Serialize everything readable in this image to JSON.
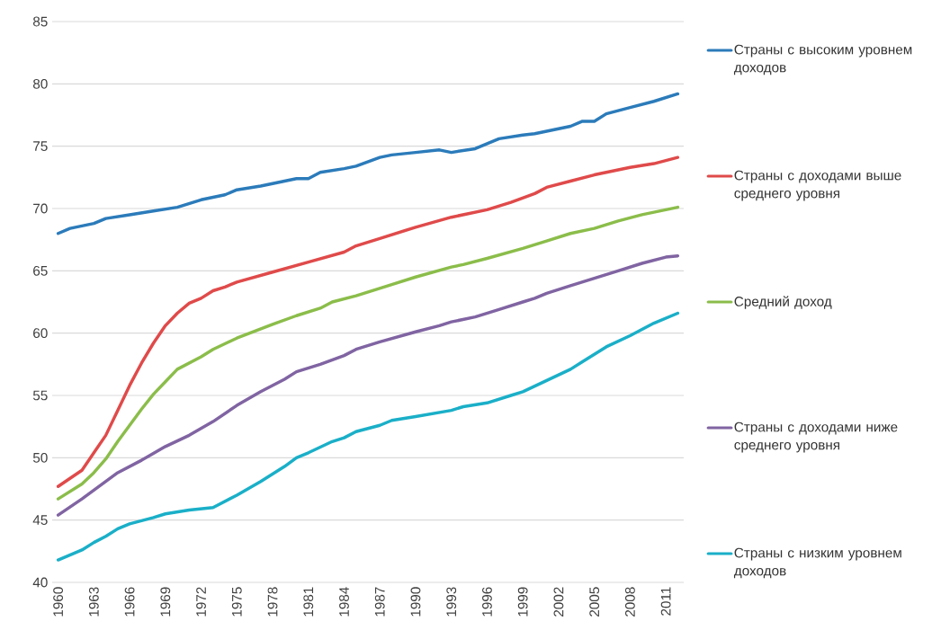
{
  "chart_data": {
    "type": "line",
    "ylim": [
      40,
      85
    ],
    "yticks": [
      40,
      45,
      50,
      55,
      60,
      65,
      70,
      75,
      80,
      85
    ],
    "xlim": [
      1959.5,
      2012.5
    ],
    "xticks": [
      1960,
      1963,
      1966,
      1969,
      1972,
      1975,
      1978,
      1981,
      1984,
      1987,
      1990,
      1993,
      1996,
      1999,
      2002,
      2005,
      2008,
      2011
    ],
    "grid": "y",
    "legend": "right",
    "marker": "none",
    "line_style": "solid",
    "series": [
      {
        "name": "Страны с высоким уровнем доходов",
        "color": "#2b7bba",
        "x": [
          1960,
          1961,
          1963,
          1964,
          1966,
          1968,
          1970,
          1972,
          1974,
          1975,
          1977,
          1979,
          1980,
          1981,
          1982,
          1984,
          1985,
          1987,
          1988,
          1990,
          1992,
          1993,
          1995,
          1997,
          1999,
          2000,
          2002,
          2003,
          2004,
          2005,
          2006,
          2008,
          2010,
          2012
        ],
        "values": [
          68.0,
          68.4,
          68.8,
          69.2,
          69.5,
          69.8,
          70.1,
          70.7,
          71.1,
          71.5,
          71.8,
          72.2,
          72.4,
          72.4,
          72.9,
          73.2,
          73.4,
          74.1,
          74.3,
          74.5,
          74.7,
          74.5,
          74.8,
          75.6,
          75.9,
          76.0,
          76.4,
          76.6,
          77.0,
          77.0,
          77.6,
          78.1,
          78.6,
          79.2
        ]
      },
      {
        "name": "Страны с доходами выше среднего уровня",
        "color": "#e04a4a",
        "x": [
          1960,
          1962,
          1963,
          1964,
          1965,
          1966,
          1967,
          1968,
          1969,
          1970,
          1971,
          1972,
          1973,
          1974,
          1975,
          1978,
          1981,
          1984,
          1985,
          1987,
          1990,
          1993,
          1996,
          1998,
          2000,
          2001,
          2003,
          2005,
          2006,
          2008,
          2010,
          2012
        ],
        "values": [
          47.7,
          49.0,
          50.4,
          51.8,
          53.8,
          55.8,
          57.6,
          59.2,
          60.6,
          61.6,
          62.4,
          62.8,
          63.4,
          63.7,
          64.1,
          64.9,
          65.7,
          66.5,
          67.0,
          67.6,
          68.5,
          69.3,
          69.9,
          70.5,
          71.2,
          71.7,
          72.2,
          72.7,
          72.9,
          73.3,
          73.6,
          74.1
        ]
      },
      {
        "name": "Средний доход",
        "color": "#8bbd4a",
        "x": [
          1960,
          1962,
          1963,
          1964,
          1965,
          1966,
          1967,
          1968,
          1969,
          1970,
          1972,
          1973,
          1975,
          1978,
          1980,
          1982,
          1983,
          1985,
          1988,
          1990,
          1993,
          1994,
          1996,
          1999,
          2001,
          2003,
          2005,
          2007,
          2009,
          2010,
          2012
        ],
        "values": [
          46.7,
          47.9,
          48.8,
          49.9,
          51.3,
          52.6,
          53.9,
          55.1,
          56.1,
          57.1,
          58.1,
          58.7,
          59.6,
          60.7,
          61.4,
          62.0,
          62.5,
          63.0,
          63.9,
          64.5,
          65.3,
          65.5,
          66.0,
          66.8,
          67.4,
          68.0,
          68.4,
          69.0,
          69.5,
          69.7,
          70.1
        ]
      },
      {
        "name": "Страны с доходами ниже среднего уровня",
        "color": "#8064a2",
        "x": [
          1960,
          1962,
          1963,
          1964,
          1965,
          1967,
          1969,
          1971,
          1973,
          1975,
          1977,
          1979,
          1980,
          1982,
          1984,
          1985,
          1987,
          1990,
          1992,
          1993,
          1995,
          1997,
          1999,
          2000,
          2001,
          2003,
          2005,
          2007,
          2009,
          2011,
          2012
        ],
        "values": [
          45.4,
          46.7,
          47.4,
          48.1,
          48.8,
          49.8,
          50.9,
          51.8,
          52.9,
          54.2,
          55.3,
          56.3,
          56.9,
          57.5,
          58.2,
          58.7,
          59.3,
          60.1,
          60.6,
          60.9,
          61.3,
          61.9,
          62.5,
          62.8,
          63.2,
          63.8,
          64.4,
          65.0,
          65.6,
          66.1,
          66.2
        ]
      },
      {
        "name": "Страны с низким уровнем доходов",
        "color": "#1aafc8",
        "x": [
          1960,
          1962,
          1963,
          1964,
          1965,
          1966,
          1968,
          1969,
          1971,
          1973,
          1974,
          1975,
          1977,
          1979,
          1980,
          1981,
          1983,
          1984,
          1985,
          1987,
          1988,
          1990,
          1993,
          1994,
          1996,
          1998,
          1999,
          2001,
          2003,
          2004,
          2006,
          2008,
          2010,
          2012
        ],
        "values": [
          41.8,
          42.6,
          43.2,
          43.7,
          44.3,
          44.7,
          45.2,
          45.5,
          45.8,
          46.0,
          46.5,
          47.0,
          48.1,
          49.3,
          50.0,
          50.4,
          51.3,
          51.6,
          52.1,
          52.6,
          53.0,
          53.3,
          53.8,
          54.1,
          54.4,
          55.0,
          55.3,
          56.2,
          57.1,
          57.7,
          58.9,
          59.8,
          60.8,
          61.6
        ]
      }
    ]
  }
}
